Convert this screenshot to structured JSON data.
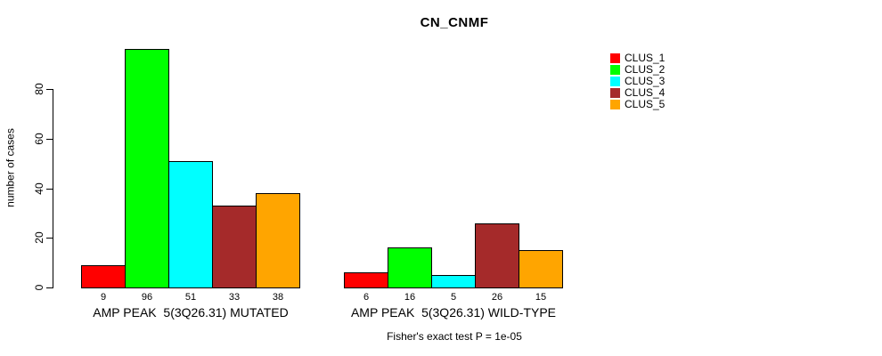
{
  "chart_data": {
    "type": "bar",
    "title": "CN_CNMF",
    "ylabel": "number of cases",
    "xlabel": "",
    "ylim": [
      0,
      80
    ],
    "yticks": [
      0,
      20,
      40,
      60,
      80
    ],
    "grid": false,
    "legend_position": "right",
    "bar_value_labels_shown": true,
    "categories": [
      "AMP PEAK  5(3Q26.31) MUTATED",
      "AMP PEAK  5(3Q26.31) WILD-TYPE"
    ],
    "series": [
      {
        "name": "CLUS_1",
        "color": "#FF0000",
        "values": [
          9,
          6
        ]
      },
      {
        "name": "CLUS_2",
        "color": "#00FF00",
        "values": [
          96,
          16
        ]
      },
      {
        "name": "CLUS_3",
        "color": "#00FFFF",
        "values": [
          51,
          5
        ]
      },
      {
        "name": "CLUS_4",
        "color": "#A52A2A",
        "values": [
          33,
          26
        ]
      },
      {
        "name": "CLUS_5",
        "color": "#FFA500",
        "values": [
          38,
          15
        ]
      }
    ],
    "annotation": "Fisher's exact test P = 1e-05"
  }
}
